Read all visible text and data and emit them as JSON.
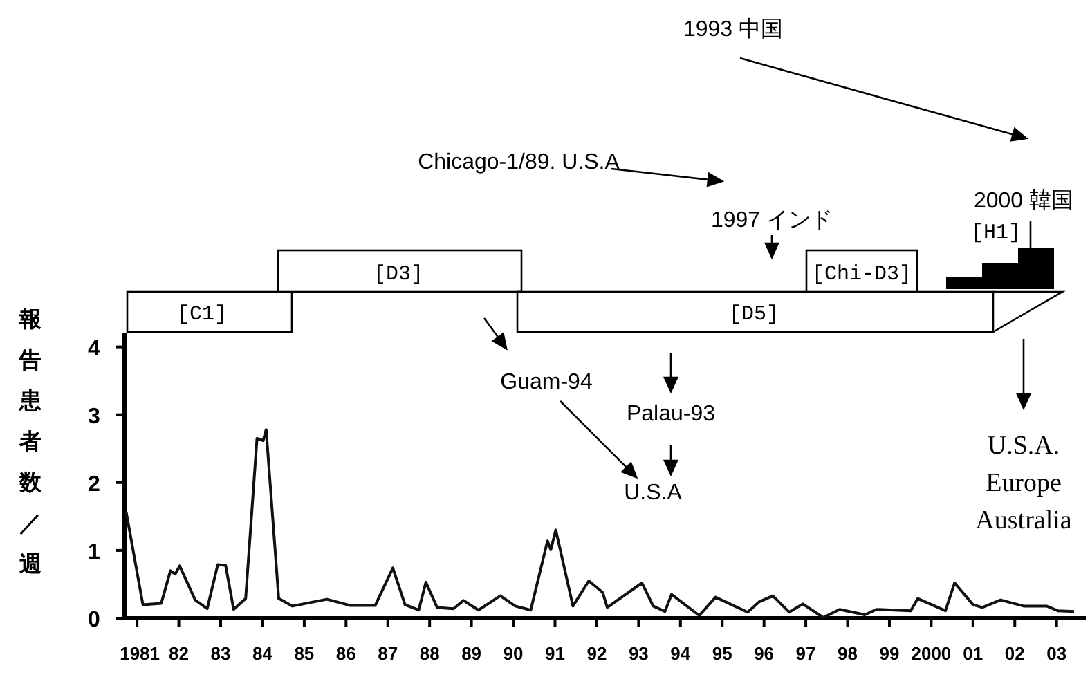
{
  "chart_data": {
    "type": "line",
    "ylabel": "報告患者数／週",
    "color": "#111111",
    "x": [
      1980.74,
      1981.14,
      1981.58,
      1981.8,
      1981.91,
      1982.02,
      1982.39,
      1982.68,
      1982.93,
      1983.12,
      1983.31,
      1983.6,
      1983.87,
      1984.02,
      1984.09,
      1984.39,
      1984.72,
      1985.54,
      1986.09,
      1986.7,
      1987.12,
      1987.41,
      1987.74,
      1987.91,
      1988.18,
      1988.57,
      1988.81,
      1989.17,
      1989.69,
      1990.05,
      1990.42,
      1990.82,
      1990.9,
      1991.02,
      1991.43,
      1991.81,
      1992.14,
      1992.25,
      1993.08,
      1993.35,
      1993.63,
      1993.79,
      1994.45,
      1994.84,
      1995.61,
      1995.88,
      1996.21,
      1996.6,
      1996.93,
      1997.42,
      1997.81,
      1998.41,
      1998.69,
      1999.51,
      1999.68,
      2000.34,
      2000.56,
      2001.0,
      2001.22,
      2001.66,
      2002.21,
      2002.76,
      2003.03,
      2003.42
    ],
    "values": [
      1.57,
      0.2,
      0.22,
      0.7,
      0.65,
      0.77,
      0.27,
      0.14,
      0.79,
      0.78,
      0.13,
      0.29,
      2.65,
      2.62,
      2.78,
      0.29,
      0.18,
      0.28,
      0.19,
      0.19,
      0.74,
      0.2,
      0.12,
      0.53,
      0.16,
      0.14,
      0.26,
      0.12,
      0.33,
      0.18,
      0.12,
      1.14,
      1.01,
      1.3,
      0.18,
      0.55,
      0.38,
      0.16,
      0.52,
      0.18,
      0.1,
      0.35,
      0.04,
      0.31,
      0.09,
      0.24,
      0.33,
      0.09,
      0.21,
      0.01,
      0.13,
      0.05,
      0.13,
      0.11,
      0.29,
      0.11,
      0.52,
      0.2,
      0.16,
      0.27,
      0.18,
      0.18,
      0.11,
      0.1
    ],
    "xlim": [
      1980.7,
      2003.7
    ],
    "ylim": [
      0,
      4.2
    ],
    "yticks": [
      0,
      1,
      2,
      3,
      4
    ],
    "xticks": [
      {
        "value": 1981,
        "label": "1981"
      },
      {
        "value": 1982,
        "label": "82"
      },
      {
        "value": 1983,
        "label": "83"
      },
      {
        "value": 1984,
        "label": "84"
      },
      {
        "value": 1985,
        "label": "85"
      },
      {
        "value": 1986,
        "label": "86"
      },
      {
        "value": 1987,
        "label": "87"
      },
      {
        "value": 1988,
        "label": "88"
      },
      {
        "value": 1989,
        "label": "89"
      },
      {
        "value": 1990,
        "label": "90"
      },
      {
        "value": 1991,
        "label": "91"
      },
      {
        "value": 1992,
        "label": "92"
      },
      {
        "value": 1993,
        "label": "93"
      },
      {
        "value": 1994,
        "label": "94"
      },
      {
        "value": 1995,
        "label": "95"
      },
      {
        "value": 1996,
        "label": "96"
      },
      {
        "value": 1997,
        "label": "97"
      },
      {
        "value": 1998,
        "label": "98"
      },
      {
        "value": 1999,
        "label": "99"
      },
      {
        "value": 2000,
        "label": "2000"
      },
      {
        "value": 2001,
        "label": "01"
      },
      {
        "value": 2002,
        "label": "02"
      },
      {
        "value": 2003,
        "label": "03"
      }
    ],
    "annotations": [
      "1993 中国",
      "2000 韓国",
      "Chicago-1/89. U.S.A",
      "1997 インド",
      "Guam-94",
      "Palau-93",
      "U.S.A",
      "U.S.A.\nEurope\nAustralia",
      "[C1]",
      "[D3]",
      "[D5]",
      "[Chi-D3]",
      "[H1]"
    ],
    "grid": false,
    "marker": "none",
    "line_style": "solid"
  }
}
